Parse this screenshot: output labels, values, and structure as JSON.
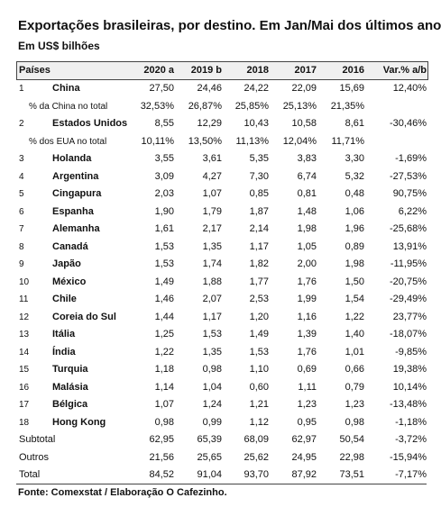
{
  "header": {
    "title": "Exportações brasileiras, por destino. Em Jan/Mai dos últimos anos",
    "subtitle": "Em US$ bilhões"
  },
  "table": {
    "columns": [
      "Países",
      "2020 a",
      "2019 b",
      "2018",
      "2017",
      "2016",
      "Var.% a/b"
    ],
    "rows": [
      {
        "rank": "1",
        "label": "China",
        "cells": [
          "27,50",
          "24,46",
          "24,22",
          "22,09",
          "15,69",
          "12,40%"
        ],
        "share_row": {
          "label": "% da China no total",
          "cells": [
            "32,53%",
            "26,87%",
            "25,85%",
            "25,13%",
            "21,35%"
          ]
        }
      },
      {
        "rank": "2",
        "label": "Estados Unidos",
        "cells": [
          "8,55",
          "12,29",
          "10,43",
          "10,58",
          "8,61",
          "-30,46%"
        ],
        "share_row": {
          "label": "% dos EUA no total",
          "cells": [
            "10,11%",
            "13,50%",
            "11,13%",
            "12,04%",
            "11,71%"
          ]
        }
      },
      {
        "rank": "3",
        "label": "Holanda",
        "cells": [
          "3,55",
          "3,61",
          "5,35",
          "3,83",
          "3,30",
          "-1,69%"
        ]
      },
      {
        "rank": "4",
        "label": "Argentina",
        "cells": [
          "3,09",
          "4,27",
          "7,30",
          "6,74",
          "5,32",
          "-27,53%"
        ]
      },
      {
        "rank": "5",
        "label": "Cingapura",
        "cells": [
          "2,03",
          "1,07",
          "0,85",
          "0,81",
          "0,48",
          "90,75%"
        ]
      },
      {
        "rank": "6",
        "label": "Espanha",
        "cells": [
          "1,90",
          "1,79",
          "1,87",
          "1,48",
          "1,06",
          "6,22%"
        ]
      },
      {
        "rank": "7",
        "label": "Alemanha",
        "cells": [
          "1,61",
          "2,17",
          "2,14",
          "1,98",
          "1,96",
          "-25,68%"
        ]
      },
      {
        "rank": "8",
        "label": "Canadá",
        "cells": [
          "1,53",
          "1,35",
          "1,17",
          "1,05",
          "0,89",
          "13,91%"
        ]
      },
      {
        "rank": "9",
        "label": "Japão",
        "cells": [
          "1,53",
          "1,74",
          "1,82",
          "2,00",
          "1,98",
          "-11,95%"
        ]
      },
      {
        "rank": "10",
        "label": "México",
        "cells": [
          "1,49",
          "1,88",
          "1,77",
          "1,76",
          "1,50",
          "-20,75%"
        ]
      },
      {
        "rank": "11",
        "label": "Chile",
        "cells": [
          "1,46",
          "2,07",
          "2,53",
          "1,99",
          "1,54",
          "-29,49%"
        ]
      },
      {
        "rank": "12",
        "label": "Coreia do Sul",
        "cells": [
          "1,44",
          "1,17",
          "1,20",
          "1,16",
          "1,22",
          "23,77%"
        ]
      },
      {
        "rank": "13",
        "label": "Itália",
        "cells": [
          "1,25",
          "1,53",
          "1,49",
          "1,39",
          "1,40",
          "-18,07%"
        ]
      },
      {
        "rank": "14",
        "label": "Índia",
        "cells": [
          "1,22",
          "1,35",
          "1,53",
          "1,76",
          "1,01",
          "-9,85%"
        ]
      },
      {
        "rank": "15",
        "label": "Turquia",
        "cells": [
          "1,18",
          "0,98",
          "1,10",
          "0,69",
          "0,66",
          "19,38%"
        ]
      },
      {
        "rank": "16",
        "label": "Malásia",
        "cells": [
          "1,14",
          "1,04",
          "0,60",
          "1,11",
          "0,79",
          "10,14%"
        ]
      },
      {
        "rank": "17",
        "label": "Bélgica",
        "cells": [
          "1,07",
          "1,24",
          "1,21",
          "1,23",
          "1,23",
          "-13,48%"
        ]
      },
      {
        "rank": "18",
        "label": "Hong Kong",
        "cells": [
          "0,98",
          "0,99",
          "1,12",
          "0,95",
          "0,98",
          "-1,18%"
        ]
      }
    ],
    "totals": [
      {
        "label": "Subtotal",
        "cells": [
          "62,95",
          "65,39",
          "68,09",
          "62,97",
          "50,54",
          "-3,72%"
        ]
      },
      {
        "label": "Outros",
        "cells": [
          "21,56",
          "25,65",
          "25,62",
          "24,95",
          "22,98",
          "-15,94%"
        ]
      },
      {
        "label": "Total",
        "cells": [
          "84,52",
          "91,04",
          "93,70",
          "87,92",
          "73,51",
          "-7,17%"
        ]
      }
    ]
  },
  "footer": {
    "source": "Fonte: Comexstat / Elaboração O Cafezinho."
  }
}
